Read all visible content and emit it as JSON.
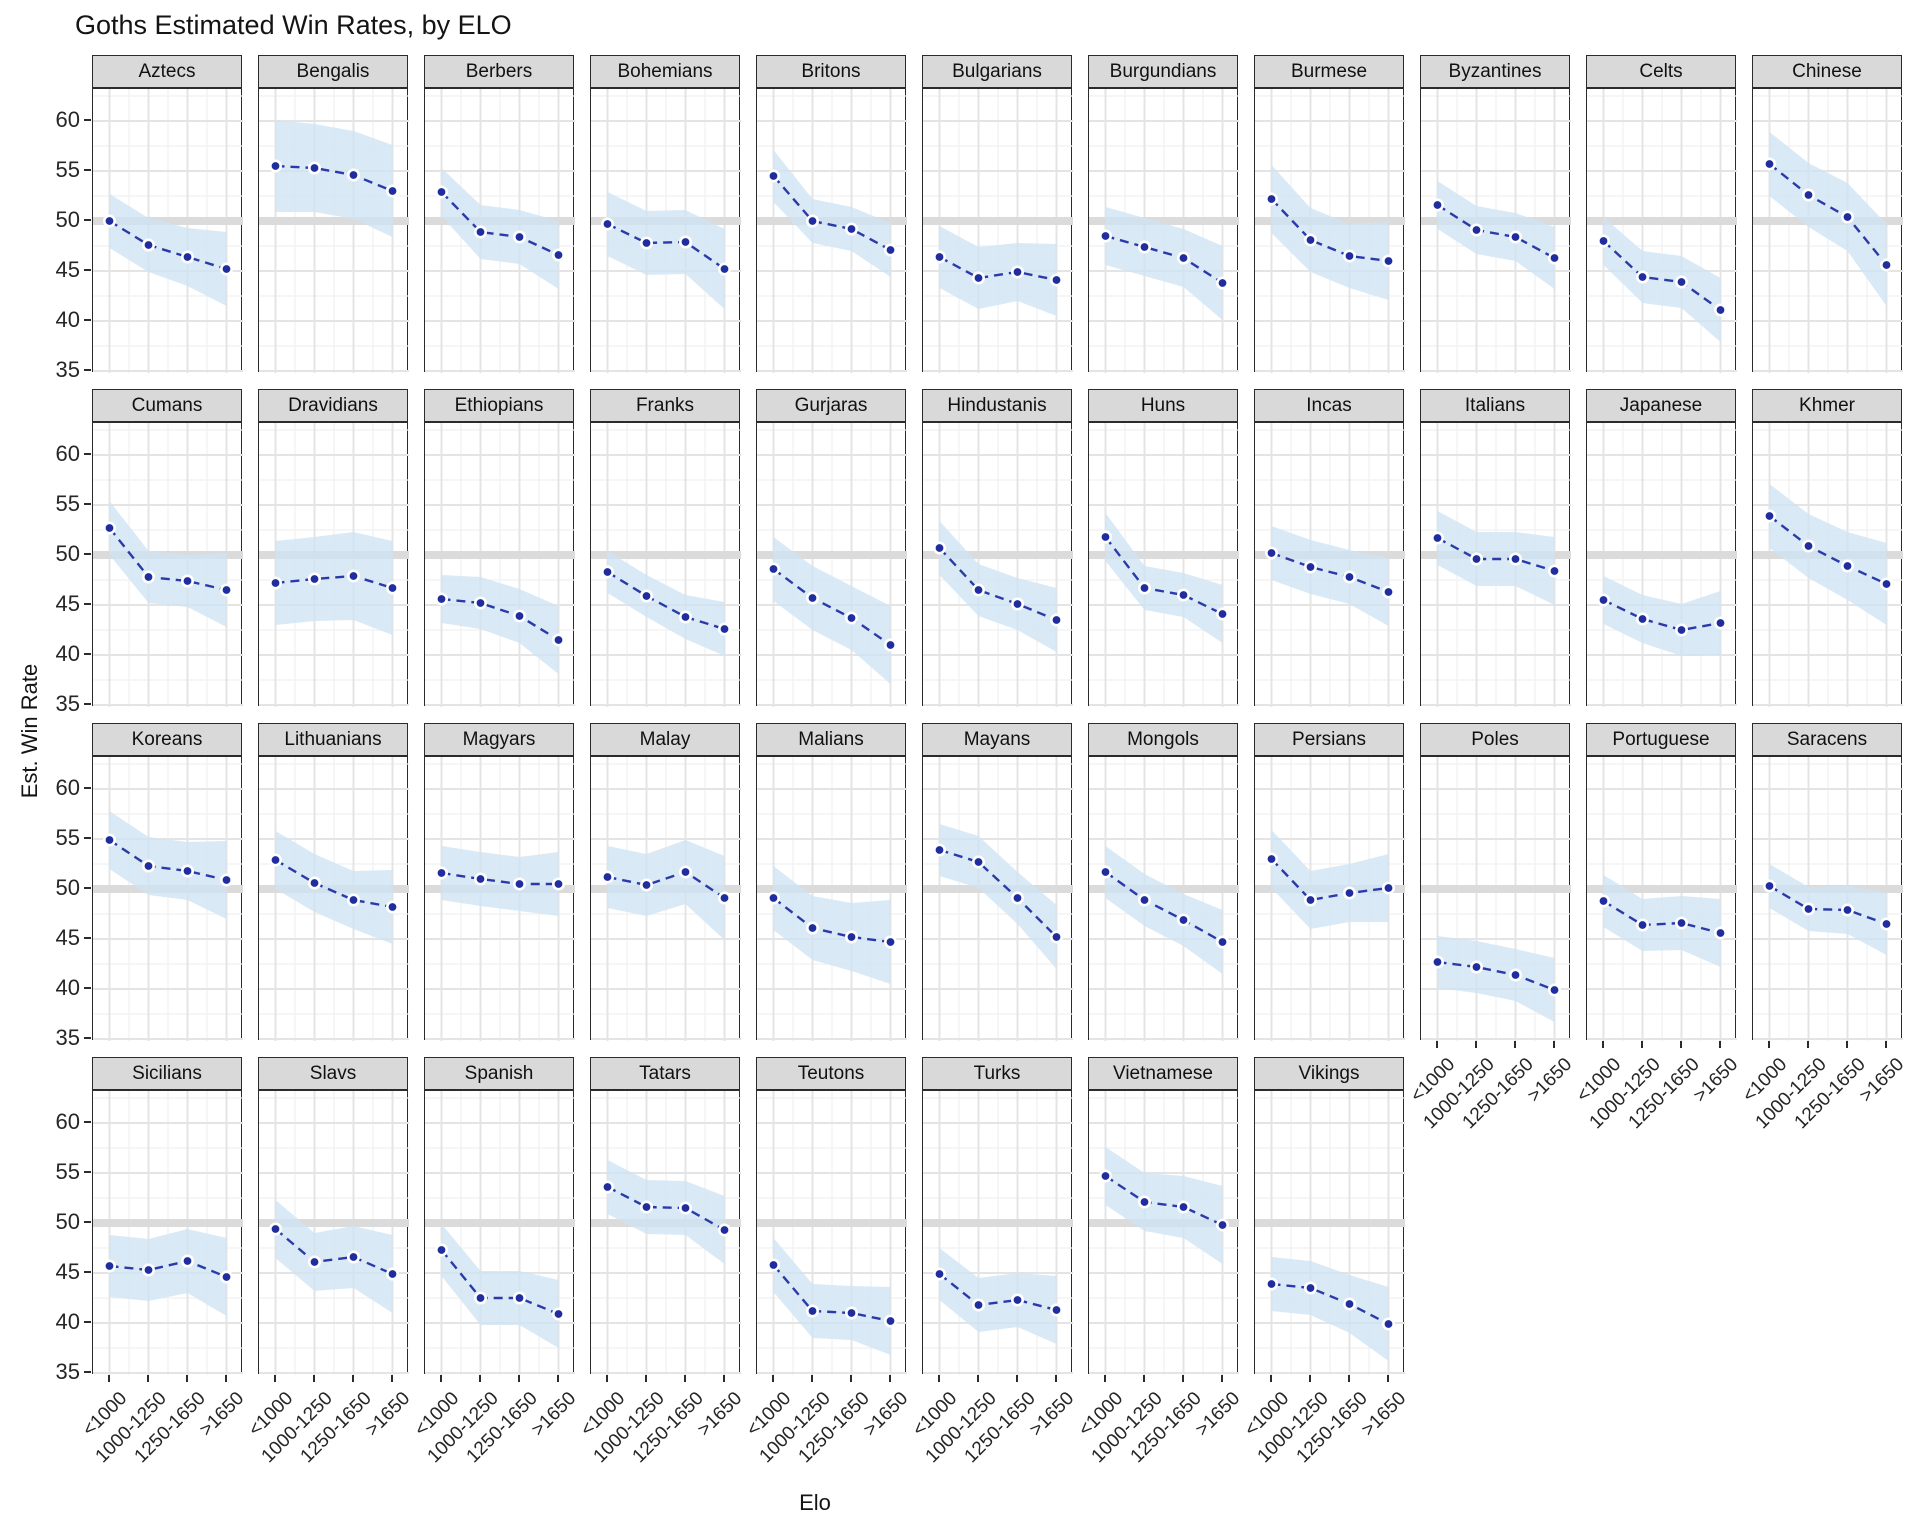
{
  "title": "Goths Estimated Win Rates, by ELO",
  "y_axis": {
    "label": "Est. Win Rate",
    "ticks": [
      "60",
      "55",
      "50",
      "45",
      "40",
      "35"
    ]
  },
  "x_axis": {
    "label": "Elo",
    "ticks": [
      "<1000",
      "1000-1250",
      "1250-1650",
      ">1650"
    ]
  },
  "reference_line": 50,
  "colors": {
    "point": "#202D9E",
    "line": "#2B3AA8",
    "ribbon": "#CEE4F4",
    "reference_band": "#DBDBDB",
    "strip_bg": "#D9D9D9",
    "grid_major": "#E4E4E4",
    "grid_minor": "#F1F1F1",
    "panel_border": "#2B2B2B"
  },
  "chart_data": {
    "type": "line",
    "title": "Goths Estimated Win Rates, by ELO",
    "xlabel": "Elo",
    "ylabel": "Est. Win Rate",
    "categories": [
      "<1000",
      "1000-1250",
      "1250-1650",
      ">1650"
    ],
    "ylim": [
      35,
      60
    ],
    "grid": true,
    "legend": "none",
    "reference_line_y": 50,
    "facets": [
      {
        "name": "Aztecs",
        "values": [
          50.0,
          47.6,
          46.4,
          45.2
        ],
        "ci": [
          2.7,
          2.7,
          2.9,
          3.7
        ]
      },
      {
        "name": "Bengalis",
        "values": [
          55.5,
          55.3,
          54.6,
          53.0
        ],
        "ci": [
          4.6,
          4.4,
          4.4,
          4.6
        ]
      },
      {
        "name": "Berbers",
        "values": [
          52.9,
          48.9,
          48.4,
          46.6
        ],
        "ci": [
          2.4,
          2.7,
          2.7,
          3.4
        ]
      },
      {
        "name": "Bohemians",
        "values": [
          49.7,
          47.8,
          47.9,
          45.2
        ],
        "ci": [
          3.2,
          3.2,
          3.2,
          4.0
        ]
      },
      {
        "name": "Britons",
        "values": [
          54.5,
          50.0,
          49.2,
          47.1
        ],
        "ci": [
          2.6,
          2.2,
          2.2,
          2.7
        ]
      },
      {
        "name": "Bulgarians",
        "values": [
          46.4,
          44.3,
          44.9,
          44.1
        ],
        "ci": [
          3.1,
          3.1,
          2.9,
          3.6
        ]
      },
      {
        "name": "Burgundians",
        "values": [
          48.5,
          47.4,
          46.3,
          43.8
        ],
        "ci": [
          2.9,
          2.9,
          2.9,
          3.7
        ]
      },
      {
        "name": "Burmese",
        "values": [
          52.2,
          48.1,
          46.5,
          46.0
        ],
        "ci": [
          3.4,
          3.2,
          3.2,
          3.9
        ]
      },
      {
        "name": "Byzantines",
        "values": [
          51.6,
          49.1,
          48.4,
          46.3
        ],
        "ci": [
          2.4,
          2.4,
          2.4,
          3.1
        ]
      },
      {
        "name": "Celts",
        "values": [
          48.0,
          44.4,
          43.9,
          41.1
        ],
        "ci": [
          2.4,
          2.6,
          2.6,
          3.2
        ]
      },
      {
        "name": "Chinese",
        "values": [
          55.7,
          52.6,
          50.4,
          45.6
        ],
        "ci": [
          3.2,
          3.2,
          3.4,
          4.1
        ]
      },
      {
        "name": "Cumans",
        "values": [
          52.7,
          47.8,
          47.4,
          46.5
        ],
        "ci": [
          2.7,
          2.6,
          2.6,
          3.7
        ]
      },
      {
        "name": "Dravidians",
        "values": [
          47.2,
          47.6,
          47.9,
          46.7
        ],
        "ci": [
          4.2,
          4.2,
          4.4,
          4.7
        ]
      },
      {
        "name": "Ethiopians",
        "values": [
          45.6,
          45.2,
          43.9,
          41.5
        ],
        "ci": [
          2.4,
          2.6,
          2.7,
          3.4
        ]
      },
      {
        "name": "Franks",
        "values": [
          48.3,
          45.9,
          43.8,
          42.6
        ],
        "ci": [
          2.1,
          2.1,
          2.2,
          2.7
        ]
      },
      {
        "name": "Gurjaras",
        "values": [
          48.6,
          45.7,
          43.7,
          41.0
        ],
        "ci": [
          3.2,
          3.2,
          3.2,
          3.9
        ]
      },
      {
        "name": "Hindustanis",
        "values": [
          50.7,
          46.5,
          45.1,
          43.5
        ],
        "ci": [
          2.7,
          2.6,
          2.6,
          3.2
        ]
      },
      {
        "name": "Huns",
        "values": [
          51.8,
          46.7,
          46.0,
          44.1
        ],
        "ci": [
          2.4,
          2.2,
          2.2,
          2.9
        ]
      },
      {
        "name": "Incas",
        "values": [
          50.2,
          48.8,
          47.8,
          46.3
        ],
        "ci": [
          2.7,
          2.7,
          2.7,
          3.4
        ]
      },
      {
        "name": "Italians",
        "values": [
          51.7,
          49.6,
          49.6,
          48.4
        ],
        "ci": [
          2.7,
          2.7,
          2.7,
          3.4
        ]
      },
      {
        "name": "Japanese",
        "values": [
          45.5,
          43.6,
          42.5,
          43.2
        ],
        "ci": [
          2.4,
          2.4,
          2.6,
          3.2
        ]
      },
      {
        "name": "Khmer",
        "values": [
          53.9,
          50.9,
          48.9,
          47.1
        ],
        "ci": [
          3.2,
          3.2,
          3.4,
          4.1
        ]
      },
      {
        "name": "Koreans",
        "values": [
          54.9,
          52.3,
          51.8,
          50.9
        ],
        "ci": [
          2.9,
          2.9,
          2.9,
          3.9
        ]
      },
      {
        "name": "Lithuanians",
        "values": [
          52.9,
          50.6,
          48.9,
          48.2
        ],
        "ci": [
          2.9,
          2.9,
          2.9,
          3.7
        ]
      },
      {
        "name": "Magyars",
        "values": [
          51.6,
          51.0,
          50.5,
          50.5
        ],
        "ci": [
          2.7,
          2.7,
          2.7,
          3.2
        ]
      },
      {
        "name": "Malay",
        "values": [
          51.2,
          50.4,
          51.7,
          49.1
        ],
        "ci": [
          3.1,
          3.1,
          3.2,
          4.2
        ]
      },
      {
        "name": "Malians",
        "values": [
          49.1,
          46.1,
          45.2,
          44.7
        ],
        "ci": [
          3.2,
          3.2,
          3.4,
          4.2
        ]
      },
      {
        "name": "Mayans",
        "values": [
          53.9,
          52.7,
          49.1,
          45.2
        ],
        "ci": [
          2.6,
          2.6,
          2.6,
          3.2
        ]
      },
      {
        "name": "Mongols",
        "values": [
          51.7,
          48.9,
          46.9,
          44.7
        ],
        "ci": [
          2.6,
          2.6,
          2.6,
          3.2
        ]
      },
      {
        "name": "Persians",
        "values": [
          53.0,
          48.9,
          49.6,
          50.1
        ],
        "ci": [
          2.9,
          2.9,
          2.9,
          3.4
        ]
      },
      {
        "name": "Poles",
        "values": [
          42.7,
          42.2,
          41.4,
          39.9
        ],
        "ci": [
          2.6,
          2.6,
          2.6,
          3.2
        ]
      },
      {
        "name": "Portuguese",
        "values": [
          48.8,
          46.4,
          46.6,
          45.6
        ],
        "ci": [
          2.6,
          2.6,
          2.7,
          3.4
        ]
      },
      {
        "name": "Saracens",
        "values": [
          50.3,
          48.0,
          47.9,
          46.5
        ],
        "ci": [
          2.2,
          2.2,
          2.4,
          3.1
        ]
      },
      {
        "name": "Sicilians",
        "values": [
          45.7,
          45.3,
          46.2,
          44.6
        ],
        "ci": [
          3.1,
          3.1,
          3.2,
          3.9
        ]
      },
      {
        "name": "Slavs",
        "values": [
          49.4,
          46.1,
          46.6,
          44.9
        ],
        "ci": [
          2.9,
          2.9,
          3.1,
          3.9
        ]
      },
      {
        "name": "Spanish",
        "values": [
          47.3,
          42.5,
          42.5,
          40.9
        ],
        "ci": [
          2.6,
          2.7,
          2.7,
          3.4
        ]
      },
      {
        "name": "Tatars",
        "values": [
          53.6,
          51.6,
          51.5,
          49.3
        ],
        "ci": [
          2.7,
          2.7,
          2.7,
          3.4
        ]
      },
      {
        "name": "Teutons",
        "values": [
          45.8,
          41.2,
          41.0,
          40.2
        ],
        "ci": [
          2.7,
          2.7,
          2.7,
          3.4
        ]
      },
      {
        "name": "Turks",
        "values": [
          44.9,
          41.8,
          42.3,
          41.3
        ],
        "ci": [
          2.6,
          2.7,
          2.7,
          3.4
        ]
      },
      {
        "name": "Vietnamese",
        "values": [
          54.7,
          52.1,
          51.6,
          49.8
        ],
        "ci": [
          2.9,
          2.9,
          3.1,
          3.9
        ]
      },
      {
        "name": "Vikings",
        "values": [
          43.9,
          43.5,
          41.9,
          39.9
        ],
        "ci": [
          2.7,
          2.7,
          2.9,
          3.7
        ]
      }
    ]
  }
}
